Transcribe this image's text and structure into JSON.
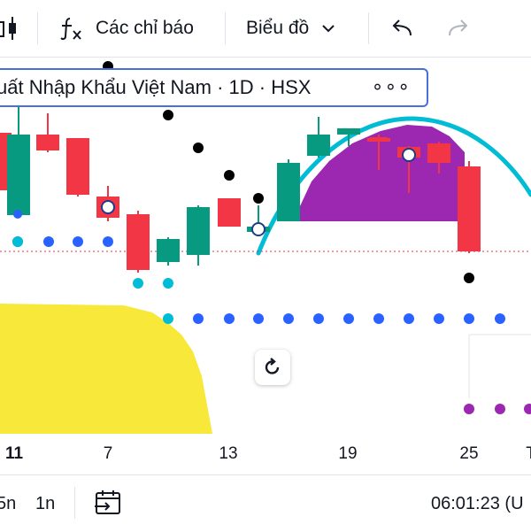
{
  "toolbar": {
    "indicators_label": "Các chỉ báo",
    "chart_type_label": "Biểu đồ"
  },
  "legend": {
    "title": "uất Nhập Khẩu Việt Nam · 1D · HSX",
    "more": "∘∘∘"
  },
  "x_axis": {
    "ticks": [
      "11",
      "7",
      "13",
      "19",
      "25",
      "T"
    ]
  },
  "bottom_bar": {
    "range_5": "5n",
    "range_1": "1n",
    "clock": "06:01:23 (U"
  },
  "colors": {
    "up": "#089981",
    "down": "#f23645",
    "cloud": "#f7e83a",
    "arc": "#00bcd4",
    "fill": "#9c27b0",
    "dots": "#2962ff"
  }
}
